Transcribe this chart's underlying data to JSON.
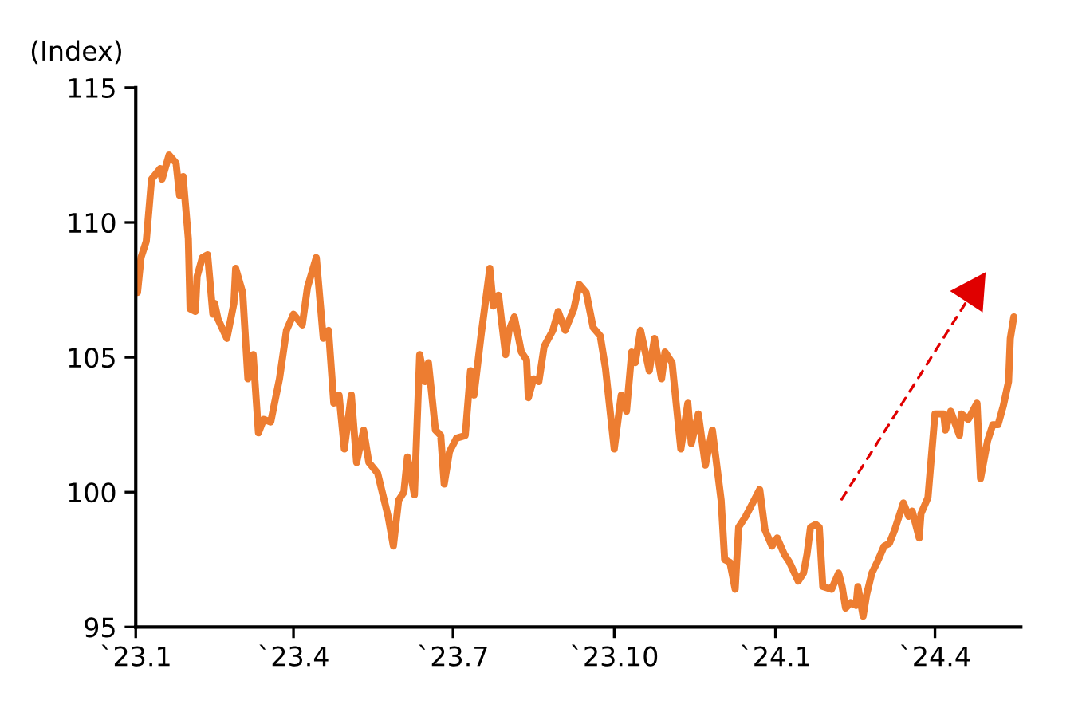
{
  "chart_data": {
    "type": "line",
    "ylabel": "(Index)",
    "x": [
      "2023-01-02",
      "2023-01-04",
      "2023-01-07",
      "2023-01-10",
      "2023-01-15",
      "2023-01-16",
      "2023-01-20",
      "2023-01-24",
      "2023-01-26",
      "2023-01-28",
      "2023-01-31",
      "2023-02-01",
      "2023-02-04",
      "2023-02-05",
      "2023-02-08",
      "2023-02-11",
      "2023-02-14",
      "2023-02-15",
      "2023-02-17",
      "2023-02-22",
      "2023-02-26",
      "2023-02-27",
      "2023-03-03",
      "2023-03-06",
      "2023-03-09",
      "2023-03-12",
      "2023-03-15",
      "2023-03-19",
      "2023-03-24",
      "2023-03-28",
      "2023-04-01",
      "2023-04-06",
      "2023-04-09",
      "2023-04-14",
      "2023-04-18",
      "2023-04-21",
      "2023-04-24",
      "2023-04-27",
      "2023-04-30",
      "2023-05-04",
      "2023-05-07",
      "2023-05-11",
      "2023-05-14",
      "2023-05-19",
      "2023-05-22",
      "2023-05-25",
      "2023-05-28",
      "2023-05-31",
      "2023-06-03",
      "2023-06-05",
      "2023-06-09",
      "2023-06-12",
      "2023-06-15",
      "2023-06-17",
      "2023-06-21",
      "2023-06-24",
      "2023-06-26",
      "2023-06-29",
      "2023-07-03",
      "2023-07-08",
      "2023-07-11",
      "2023-07-13",
      "2023-07-17",
      "2023-07-22",
      "2023-07-24",
      "2023-07-27",
      "2023-07-31",
      "2023-08-02",
      "2023-08-05",
      "2023-08-09",
      "2023-08-12",
      "2023-08-13",
      "2023-08-16",
      "2023-08-19",
      "2023-08-22",
      "2023-08-27",
      "2023-08-30",
      "2023-09-03",
      "2023-09-08",
      "2023-09-11",
      "2023-09-15",
      "2023-09-19",
      "2023-09-23",
      "2023-09-26",
      "2023-10-01",
      "2023-10-05",
      "2023-10-08",
      "2023-10-11",
      "2023-10-13",
      "2023-10-16",
      "2023-10-21",
      "2023-10-24",
      "2023-10-28",
      "2023-10-30",
      "2023-11-03",
      "2023-11-08",
      "2023-11-12",
      "2023-11-14",
      "2023-11-18",
      "2023-11-22",
      "2023-11-26",
      "2023-12-01",
      "2023-12-03",
      "2023-12-06",
      "2023-12-09",
      "2023-12-11",
      "2023-12-15",
      "2023-12-19",
      "2023-12-23",
      "2023-12-26",
      "2023-12-30",
      "2024-01-02",
      "2024-01-06",
      "2024-01-09",
      "2024-01-14",
      "2024-01-17",
      "2024-01-19",
      "2024-01-21",
      "2024-01-24",
      "2024-01-26",
      "2024-01-28",
      "2024-02-02",
      "2024-02-06",
      "2024-02-08",
      "2024-02-10",
      "2024-02-13",
      "2024-02-16",
      "2024-02-17",
      "2024-02-20",
      "2024-02-22",
      "2024-02-25",
      "2024-02-28",
      "2024-03-03",
      "2024-03-06",
      "2024-03-09",
      "2024-03-14",
      "2024-03-17",
      "2024-03-19",
      "2024-03-23",
      "2024-03-24",
      "2024-03-28",
      "2024-04-01",
      "2024-04-06",
      "2024-04-07",
      "2024-04-10",
      "2024-04-15",
      "2024-04-16",
      "2024-04-20",
      "2024-04-25",
      "2024-04-27",
      "2024-05-01",
      "2024-05-04",
      "2024-05-07",
      "2024-05-10",
      "2024-05-13",
      "2024-05-14",
      "2024-05-16"
    ],
    "series": [
      {
        "color": "#ed7d31",
        "values": [
          107.4,
          108.7,
          109.3,
          111.6,
          112.0,
          111.6,
          112.5,
          112.2,
          111.0,
          111.7,
          109.4,
          106.8,
          106.7,
          108.0,
          108.7,
          108.8,
          106.6,
          107.0,
          106.4,
          105.7,
          107.0,
          108.3,
          107.4,
          104.2,
          105.1,
          102.2,
          102.7,
          102.6,
          104.2,
          106.0,
          106.6,
          106.2,
          107.6,
          108.7,
          105.7,
          106.0,
          103.3,
          103.6,
          101.6,
          103.6,
          101.1,
          102.3,
          101.1,
          100.7,
          99.9,
          99.1,
          98.0,
          99.7,
          100.0,
          101.3,
          99.9,
          105.1,
          104.1,
          104.8,
          102.3,
          102.1,
          100.3,
          101.5,
          102.0,
          102.1,
          104.5,
          103.6,
          105.8,
          108.3,
          106.9,
          107.3,
          105.1,
          106.0,
          106.5,
          105.2,
          104.9,
          103.5,
          104.2,
          104.1,
          105.4,
          106.0,
          106.7,
          106.0,
          106.8,
          107.7,
          107.4,
          106.1,
          105.8,
          104.6,
          101.6,
          103.6,
          103.0,
          105.2,
          104.8,
          106.0,
          104.5,
          105.7,
          104.2,
          105.2,
          104.8,
          101.6,
          103.3,
          101.8,
          102.9,
          101.0,
          102.3,
          99.7,
          97.5,
          97.4,
          96.4,
          98.7,
          99.1,
          99.6,
          100.1,
          98.6,
          98.0,
          98.3,
          97.7,
          97.4,
          96.7,
          97.0,
          97.7,
          98.7,
          98.8,
          98.7,
          96.5,
          96.4,
          97.0,
          96.5,
          95.7,
          95.9,
          95.8,
          96.5,
          95.4,
          96.2,
          97.0,
          97.4,
          98.0,
          98.1,
          98.6,
          99.6,
          99.1,
          99.3,
          98.3,
          99.2,
          99.8,
          102.9,
          102.9,
          102.3,
          103.0,
          102.1,
          102.9,
          102.7,
          103.3,
          100.5,
          101.9,
          102.5,
          102.5,
          103.2,
          104.1,
          105.7,
          106.5
        ]
      }
    ],
    "xlim": [
      "2023-01-01",
      "2024-05-20"
    ],
    "xticks": [
      {
        "value": "2023-01-01",
        "label": "`23.1"
      },
      {
        "value": "2023-04-01",
        "label": "`23.4"
      },
      {
        "value": "2023-07-01",
        "label": "`23.7"
      },
      {
        "value": "2023-10-01",
        "label": "`23.10"
      },
      {
        "value": "2024-01-01",
        "label": "`24.1"
      },
      {
        "value": "2024-04-01",
        "label": "`24.4"
      }
    ],
    "ylim": [
      95,
      115
    ],
    "yticks": [
      95,
      100,
      105,
      110,
      115
    ],
    "grid": false,
    "marker": "none",
    "line_style": "solid"
  }
}
